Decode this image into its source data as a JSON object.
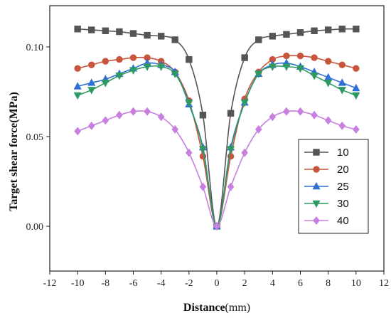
{
  "chart_data": {
    "type": "line",
    "xlabel": "Distance",
    "xunit": "(mm)",
    "ylabel": "Target shear force(MPa)",
    "xlim": [
      -12,
      12
    ],
    "ylim": [
      -0.025,
      0.123
    ],
    "xticks": [
      -12,
      -10,
      -8,
      -6,
      -4,
      -2,
      0,
      2,
      4,
      6,
      8,
      10,
      12
    ],
    "xtick_labels": [
      "-12",
      "-10",
      "-8",
      "-6",
      "-4",
      "-2",
      "0",
      "2",
      "4",
      "6",
      "8",
      "10",
      "12"
    ],
    "yticks": [
      0.0,
      0.05,
      0.1
    ],
    "ytick_labels": [
      "0.00",
      "0.05",
      "0.10"
    ],
    "grid": false,
    "legend_position": "right",
    "x": [
      -10,
      -9,
      -8,
      -7,
      -6,
      -5,
      -4,
      -3,
      -2,
      -1,
      0,
      1,
      2,
      3,
      4,
      5,
      6,
      7,
      8,
      9,
      10
    ],
    "series": [
      {
        "name": "10",
        "color": "#555555",
        "marker": "square",
        "values": [
          0.11,
          0.1095,
          0.109,
          0.1085,
          0.1075,
          0.1065,
          0.106,
          0.104,
          0.093,
          0.062,
          0.0,
          0.063,
          0.094,
          0.104,
          0.106,
          0.107,
          0.108,
          0.109,
          0.1095,
          0.11,
          0.11
        ]
      },
      {
        "name": "20",
        "color": "#c8553d",
        "marker": "circle",
        "values": [
          0.088,
          0.09,
          0.092,
          0.093,
          0.094,
          0.094,
          0.092,
          0.086,
          0.07,
          0.039,
          0.0,
          0.039,
          0.071,
          0.086,
          0.093,
          0.095,
          0.095,
          0.094,
          0.092,
          0.09,
          0.088
        ]
      },
      {
        "name": "25",
        "color": "#2f6fd6",
        "marker": "triangle-up",
        "values": [
          0.078,
          0.08,
          0.082,
          0.085,
          0.088,
          0.091,
          0.09,
          0.086,
          0.068,
          0.044,
          0.0,
          0.044,
          0.069,
          0.085,
          0.09,
          0.091,
          0.089,
          0.086,
          0.083,
          0.08,
          0.077
        ]
      },
      {
        "name": "30",
        "color": "#2e9a62",
        "marker": "triangle-down",
        "values": [
          0.073,
          0.076,
          0.08,
          0.084,
          0.087,
          0.089,
          0.089,
          0.085,
          0.069,
          0.043,
          0.0,
          0.043,
          0.069,
          0.085,
          0.089,
          0.089,
          0.088,
          0.084,
          0.08,
          0.076,
          0.073
        ]
      },
      {
        "name": "40",
        "color": "#c77fe0",
        "marker": "diamond",
        "values": [
          0.053,
          0.056,
          0.059,
          0.062,
          0.064,
          0.064,
          0.061,
          0.054,
          0.041,
          0.022,
          0.0,
          0.022,
          0.041,
          0.054,
          0.061,
          0.064,
          0.064,
          0.062,
          0.059,
          0.056,
          0.054
        ]
      }
    ]
  }
}
